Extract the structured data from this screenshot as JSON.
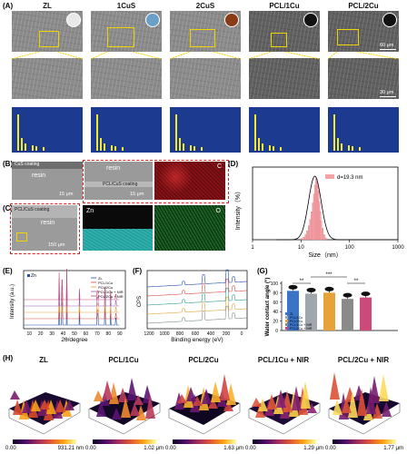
{
  "panels": {
    "A": "(A)",
    "B": "(B)",
    "C": "(C)",
    "D": "(D)",
    "E": "(E)",
    "F": "(F)",
    "G": "(G)",
    "H": "(H)"
  },
  "A": {
    "columns": [
      "ZL",
      "1CuS",
      "2CuS",
      "PCL/1Cu",
      "PCL/2Cu"
    ],
    "scale_top": "60 μm",
    "scale_mid": "30 μm"
  },
  "B": {
    "label_cus": "CuS coating",
    "label_resin": "resin",
    "label_resin2": "resin",
    "label_pcl": "PCL/CuS coating",
    "scale1": "15 μm",
    "scale2": "15 μm",
    "map_C": "C"
  },
  "C": {
    "label_pcl": "PCL/CuS coating",
    "label_resin": "resin",
    "scale": "150 μm",
    "map_Zn": "Zn",
    "map_O": "O"
  },
  "D": {
    "ylabel": "Intensity（%）",
    "xlabel": "Size（nm）",
    "legend": "d=19.3 nm",
    "ticks": [
      "1",
      "10",
      "100",
      "1000"
    ]
  },
  "E": {
    "legend_zn": "Zn",
    "xlabel": "2θ/degree",
    "ylabel": "Intensity (a.u.)",
    "ticks": [
      "10",
      "20",
      "30",
      "40",
      "50",
      "60",
      "70",
      "80",
      "90"
    ],
    "series": [
      "ZL",
      "PCL/1Cu",
      "PCL/2Cu",
      "PCL/1Cu + NIR",
      "PCL/2Cu + NIR"
    ]
  },
  "F": {
    "ylabel": "CPS",
    "xlabel": "Binding energy (eV)",
    "ticks": [
      "1200",
      "1000",
      "800",
      "600",
      "400",
      "200",
      "0"
    ]
  },
  "G": {
    "ylabel": "Water contact angle (°)",
    "sig": [
      "**",
      "***",
      "**"
    ],
    "yticks": [
      "0",
      "20",
      "40",
      "60",
      "80",
      "100"
    ],
    "legend": [
      "ZL",
      "PCL/1Cu",
      "PCL/2Cu",
      "PCL/1Cu + NIR",
      "PCL/2Cu + NIR"
    ]
  },
  "H": {
    "columns": [
      "ZL",
      "PCL/1Cu",
      "PCL/2Cu",
      "PCL/1Cu + NIR",
      "PCL/2Cu + NIR"
    ],
    "cb_min": [
      "0.00",
      "0.00",
      "0.00",
      "0.00",
      "0.00"
    ],
    "cb_max": [
      "931.21 nm",
      "1.02 μm",
      "1.63 μm",
      "1.29 μm",
      "1.77 μm"
    ]
  },
  "chart_data": [
    {
      "type": "bar",
      "panel": "G",
      "categories": [
        "ZL",
        "PCL/1Cu",
        "PCL/2Cu",
        "PCL/1Cu + NIR",
        "PCL/2Cu + NIR"
      ],
      "values": [
        84,
        78,
        80,
        67,
        70
      ],
      "colors": [
        "#3b73c6",
        "#9fa7ad",
        "#e8a23a",
        "#8a8a8a",
        "#cc4a7a"
      ],
      "ylim": [
        0,
        100
      ]
    },
    {
      "type": "bar",
      "panel": "D",
      "x": [
        10,
        11,
        12,
        13,
        14,
        15,
        16,
        17,
        18,
        19,
        20,
        21,
        22,
        23,
        24,
        25,
        27,
        29,
        31
      ],
      "values": [
        2,
        4,
        8,
        14,
        22,
        32,
        44,
        58,
        72,
        86,
        96,
        90,
        76,
        60,
        44,
        30,
        18,
        8,
        3
      ],
      "ylim": [
        0,
        100
      ]
    }
  ]
}
